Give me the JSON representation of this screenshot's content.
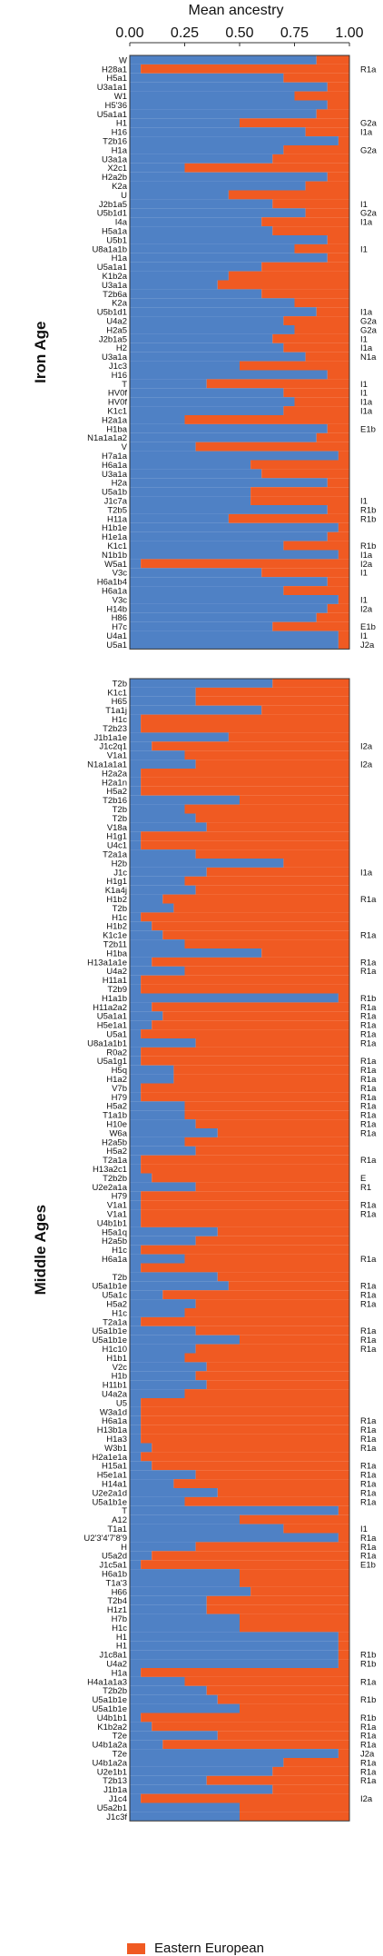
{
  "colors": {
    "eastern": "#f05a22",
    "western": "#4f81c5"
  },
  "chart_data": {
    "type": "bar",
    "orientation": "horizontal",
    "stacked": true,
    "title": "",
    "xlabel": "Mean ancestry",
    "xlim": [
      0,
      1
    ],
    "xticks": [
      "0.00",
      "0.25",
      "0.50",
      "0.75",
      "1.00"
    ],
    "grid": false,
    "legend": {
      "placement": "bottom",
      "entries": [
        "Eastern European"
      ]
    },
    "panels": [
      {
        "label": "Iron Age",
        "bars": [
          {
            "h": "W",
            "y": "",
            "e": 0.15
          },
          {
            "h": "H28a1",
            "y": "R1a",
            "e": 0.95
          },
          {
            "h": "H5a1",
            "y": "",
            "e": 0.3
          },
          {
            "h": "U3a1a1",
            "y": "",
            "e": 0.1
          },
          {
            "h": "W1",
            "y": "",
            "e": 0.25
          },
          {
            "h": "H5'36",
            "y": "",
            "e": 0.1
          },
          {
            "h": "U5a1a1",
            "y": "",
            "e": 0.15
          },
          {
            "h": "H1",
            "y": "G2a",
            "e": 0.5
          },
          {
            "h": "H16",
            "y": "I1a",
            "e": 0.2
          },
          {
            "h": "T2b16",
            "y": "",
            "e": 0.05
          },
          {
            "h": "H1a",
            "y": "G2a",
            "e": 0.3
          },
          {
            "h": "U3a1a",
            "y": "",
            "e": 0.35
          },
          {
            "h": "X2c1",
            "y": "",
            "e": 0.75
          },
          {
            "h": "H2a2b",
            "y": "",
            "e": 0.1
          },
          {
            "h": "K2a",
            "y": "",
            "e": 0.2
          },
          {
            "h": "U",
            "y": "",
            "e": 0.55
          },
          {
            "h": "J2b1a5",
            "y": "I1",
            "e": 0.35
          },
          {
            "h": "U5b1d1",
            "y": "G2a",
            "e": 0.2
          },
          {
            "h": "I4a",
            "y": "I1a",
            "e": 0.4
          },
          {
            "h": "H5a1a",
            "y": "",
            "e": 0.35
          },
          {
            "h": "U5b1",
            "y": "",
            "e": 0.1
          },
          {
            "h": "U8a1a1b",
            "y": "I1",
            "e": 0.25
          },
          {
            "h": "H1a",
            "y": "",
            "e": 0.1
          },
          {
            "h": "U5a1a1",
            "y": "",
            "e": 0.4
          },
          {
            "h": "K1b2a",
            "y": "",
            "e": 0.55
          },
          {
            "h": "U3a1a",
            "y": "",
            "e": 0.6
          },
          {
            "h": "T2b6a",
            "y": "",
            "e": 0.4
          },
          {
            "h": "K2a",
            "y": "",
            "e": 0.25
          },
          {
            "h": "U5b1d1",
            "y": "I1a",
            "e": 0.15
          },
          {
            "h": "U4a2",
            "y": "G2a",
            "e": 0.3
          },
          {
            "h": "H2a5",
            "y": "G2a",
            "e": 0.25
          },
          {
            "h": "J2b1a5",
            "y": "I1",
            "e": 0.35
          },
          {
            "h": "H2",
            "y": "I1a",
            "e": 0.3
          },
          {
            "h": "U3a1a",
            "y": "N1a",
            "e": 0.2
          },
          {
            "h": "J1c3",
            "y": "",
            "e": 0.5
          },
          {
            "h": "H16",
            "y": "",
            "e": 0.1
          },
          {
            "h": "T",
            "y": "I1",
            "e": 0.65
          },
          {
            "h": "HV0f",
            "y": "I1",
            "e": 0.3
          },
          {
            "h": "HV0f",
            "y": "I1a",
            "e": 0.25
          },
          {
            "h": "K1c1",
            "y": "I1a",
            "e": 0.3
          },
          {
            "h": "H2a1a",
            "y": "",
            "e": 0.75
          },
          {
            "h": "H1ba",
            "y": "E1b",
            "e": 0.1
          },
          {
            "h": "N1a1a1a2",
            "y": "",
            "e": 0.15
          },
          {
            "h": "V",
            "y": "",
            "e": 0.7
          },
          {
            "h": "H7a1a",
            "y": "",
            "e": 0.05
          },
          {
            "h": "H6a1a",
            "y": "",
            "e": 0.45
          },
          {
            "h": "U3a1a",
            "y": "",
            "e": 0.4
          },
          {
            "h": "H2a",
            "y": "",
            "e": 0.1
          },
          {
            "h": "U5a1b",
            "y": "",
            "e": 0.45
          },
          {
            "h": "J1c7a",
            "y": "I1",
            "e": 0.45
          },
          {
            "h": "T2b5",
            "y": "R1b",
            "e": 0.1
          },
          {
            "h": "H11a",
            "y": "R1b",
            "e": 0.55
          },
          {
            "h": "H1b1e",
            "y": "",
            "e": 0.05
          },
          {
            "h": "H1e1a",
            "y": "",
            "e": 0.1
          },
          {
            "h": "K1c1",
            "y": "R1b",
            "e": 0.3
          },
          {
            "h": "N1b1b",
            "y": "I1a",
            "e": 0.05
          },
          {
            "h": "W5a1",
            "y": "I2a",
            "e": 0.95
          },
          {
            "h": "V3c",
            "y": "I1",
            "e": 0.4
          },
          {
            "h": "H6a1b4",
            "y": "",
            "e": 0.1
          },
          {
            "h": "H6a1a",
            "y": "",
            "e": 0.3
          },
          {
            "h": "V3c",
            "y": "I1",
            "e": 0.05
          },
          {
            "h": "H14b",
            "y": "I2a",
            "e": 0.1
          },
          {
            "h": "H86",
            "y": "",
            "e": 0.15
          },
          {
            "h": "H7c",
            "y": "E1b",
            "e": 0.35
          },
          {
            "h": "U4a1",
            "y": "I1",
            "e": 0.05
          },
          {
            "h": "U5a1",
            "y": "J2a",
            "e": 0.05
          }
        ]
      },
      {
        "label": "Middle Ages",
        "bars": [
          {
            "h": "T2b",
            "y": "",
            "e": 0.35
          },
          {
            "h": "K1c1",
            "y": "",
            "e": 0.7
          },
          {
            "h": "H65",
            "y": "",
            "e": 0.7
          },
          {
            "h": "T1a1j",
            "y": "",
            "e": 0.4
          },
          {
            "h": "H1c",
            "y": "",
            "e": 0.95
          },
          {
            "h": "T2b23",
            "y": "",
            "e": 0.95
          },
          {
            "h": "J1b1a1e",
            "y": "",
            "e": 0.55
          },
          {
            "h": "J1c2q1",
            "y": "I2a",
            "e": 0.9
          },
          {
            "h": "V1a1",
            "y": "",
            "e": 0.75
          },
          {
            "h": "N1a1a1a1",
            "y": "I2a",
            "e": 0.7
          },
          {
            "h": "H2a2a",
            "y": "",
            "e": 0.95
          },
          {
            "h": "H2a1n",
            "y": "",
            "e": 0.95
          },
          {
            "h": "H5a2",
            "y": "",
            "e": 0.95
          },
          {
            "h": "T2b16",
            "y": "",
            "e": 0.5
          },
          {
            "h": "T2b",
            "y": "",
            "e": 0.75
          },
          {
            "h": "T2b",
            "y": "",
            "e": 0.7
          },
          {
            "h": "V18a",
            "y": "",
            "e": 0.65
          },
          {
            "h": "H1g1",
            "y": "",
            "e": 0.95
          },
          {
            "h": "U4c1",
            "y": "",
            "e": 0.95
          },
          {
            "h": "T2a1a",
            "y": "",
            "e": 0.7
          },
          {
            "h": "H2b",
            "y": "",
            "e": 0.3
          },
          {
            "h": "J1c",
            "y": "I1a",
            "e": 0.65
          },
          {
            "h": "H1g1",
            "y": "",
            "e": 0.75
          },
          {
            "h": "K1a4j",
            "y": "",
            "e": 0.7
          },
          {
            "h": "H1b2",
            "y": "R1a",
            "e": 0.85
          },
          {
            "h": "T2b",
            "y": "",
            "e": 0.8
          },
          {
            "h": "H1c",
            "y": "",
            "e": 0.95
          },
          {
            "h": "H1b2",
            "y": "",
            "e": 0.9
          },
          {
            "h": "K1c1e",
            "y": "R1a",
            "e": 0.85
          },
          {
            "h": "T2b11",
            "y": "",
            "e": 0.75
          },
          {
            "h": "H1ba",
            "y": "",
            "e": 0.4
          },
          {
            "h": "H13a1a1e",
            "y": "R1a",
            "e": 0.9
          },
          {
            "h": "U4a2",
            "y": "R1a",
            "e": 0.75
          },
          {
            "h": "H11a1",
            "y": "",
            "e": 0.95
          },
          {
            "h": "T2b9",
            "y": "",
            "e": 0.95
          },
          {
            "h": "H1a1b",
            "y": "R1b",
            "e": 0.05
          },
          {
            "h": "H11a2a2",
            "y": "R1a",
            "e": 0.9
          },
          {
            "h": "U5a1a1",
            "y": "R1a",
            "e": 0.85
          },
          {
            "h": "H5e1a1",
            "y": "R1a",
            "e": 0.9
          },
          {
            "h": "U5a1",
            "y": "R1a",
            "e": 0.95
          },
          {
            "h": "U8a1a1b1",
            "y": "R1a",
            "e": 0.7
          },
          {
            "h": "R0a2",
            "y": "",
            "e": 0.95
          },
          {
            "h": "U5a1g1",
            "y": "R1a",
            "e": 0.95
          },
          {
            "h": "H5q",
            "y": "R1a",
            "e": 0.8
          },
          {
            "h": "H1a2",
            "y": "R1a",
            "e": 0.8
          },
          {
            "h": "V7b",
            "y": "R1a",
            "e": 0.95
          },
          {
            "h": "H79",
            "y": "R1a",
            "e": 0.95
          },
          {
            "h": "H5a2",
            "y": "R1a",
            "e": 0.75
          },
          {
            "h": "T1a1b",
            "y": "R1a",
            "e": 0.75
          },
          {
            "h": "H10e",
            "y": "R1a",
            "e": 0.7
          },
          {
            "h": "W6a",
            "y": "R1a",
            "e": 0.6
          },
          {
            "h": "H2a5b",
            "y": "",
            "e": 0.75
          },
          {
            "h": "H5a2",
            "y": "",
            "e": 0.7
          },
          {
            "h": "T2a1a",
            "y": "R1a",
            "e": 0.95
          },
          {
            "h": "H13a2c1",
            "y": "",
            "e": 0.95
          },
          {
            "h": "T2b2b",
            "y": "E",
            "e": 0.9
          },
          {
            "h": "U2e2a1a",
            "y": "R1",
            "e": 0.7
          },
          {
            "h": "H79",
            "y": "",
            "e": 0.95
          },
          {
            "h": "V1a1",
            "y": "R1a",
            "e": 0.95
          },
          {
            "h": "V1a1",
            "y": "R1a",
            "e": 0.95
          },
          {
            "h": "U4b1b1",
            "y": "",
            "e": 0.95
          },
          {
            "h": "H5a1q",
            "y": "",
            "e": 0.6
          },
          {
            "h": "H2a5b",
            "y": "",
            "e": 0.7
          },
          {
            "h": "H1c",
            "y": "",
            "e": 0.95
          },
          {
            "h": "H6a1a",
            "y": "R1a",
            "e": 0.75
          },
          {
            "h": "",
            "y": "",
            "e": 0.95
          },
          {
            "h": "T2b",
            "y": "",
            "e": 0.6
          },
          {
            "h": "U5a1b1e",
            "y": "R1a",
            "e": 0.55
          },
          {
            "h": "U5a1c",
            "y": "R1a",
            "e": 0.85
          },
          {
            "h": "H5a2",
            "y": "R1a",
            "e": 0.7
          },
          {
            "h": "H1c",
            "y": "",
            "e": 0.75
          },
          {
            "h": "T2a1a",
            "y": "",
            "e": 0.95
          },
          {
            "h": "U5a1b1e",
            "y": "R1a",
            "e": 0.7
          },
          {
            "h": "U5a1b1e",
            "y": "R1a",
            "e": 0.5
          },
          {
            "h": "H1c10",
            "y": "R1a",
            "e": 0.7
          },
          {
            "h": "H1b1",
            "y": "",
            "e": 0.75
          },
          {
            "h": "V2c",
            "y": "",
            "e": 0.65
          },
          {
            "h": "H1b",
            "y": "",
            "e": 0.7
          },
          {
            "h": "H11b1",
            "y": "",
            "e": 0.65
          },
          {
            "h": "U4a2a",
            "y": "",
            "e": 0.75
          },
          {
            "h": "U5",
            "y": "",
            "e": 0.95
          },
          {
            "h": "W3a1d",
            "y": "",
            "e": 0.95
          },
          {
            "h": "H6a1a",
            "y": "R1a",
            "e": 0.95
          },
          {
            "h": "H13b1a",
            "y": "R1a",
            "e": 0.95
          },
          {
            "h": "H1a3",
            "y": "R1a",
            "e": 0.95
          },
          {
            "h": "W3b1",
            "y": "R1a",
            "e": 0.9
          },
          {
            "h": "H2a1e1a",
            "y": "",
            "e": 0.95
          },
          {
            "h": "H15a1",
            "y": "R1a",
            "e": 0.9
          },
          {
            "h": "H5e1a1",
            "y": "R1a",
            "e": 0.7
          },
          {
            "h": "H14a1",
            "y": "R1a",
            "e": 0.8
          },
          {
            "h": "U2e2a1d",
            "y": "R1a",
            "e": 0.6
          },
          {
            "h": "U5a1b1e",
            "y": "R1a",
            "e": 0.75
          },
          {
            "h": "T",
            "y": "",
            "e": 0.05
          },
          {
            "h": "A12",
            "y": "",
            "e": 0.5
          },
          {
            "h": "T1a1",
            "y": "I1",
            "e": 0.3
          },
          {
            "h": "U2'3'4'7'8'9",
            "y": "R1a",
            "e": 0.05
          },
          {
            "h": "H",
            "y": "R1a",
            "e": 0.7
          },
          {
            "h": "U5a2d",
            "y": "R1a",
            "e": 0.9
          },
          {
            "h": "J1c5a1",
            "y": "E1b",
            "e": 0.95
          },
          {
            "h": "H6a1b",
            "y": "",
            "e": 0.5
          },
          {
            "h": "T1a'3",
            "y": "",
            "e": 0.5
          },
          {
            "h": "H66",
            "y": "",
            "e": 0.45
          },
          {
            "h": "T2b4",
            "y": "",
            "e": 0.65
          },
          {
            "h": "H1z1",
            "y": "",
            "e": 0.65
          },
          {
            "h": "H7b",
            "y": "",
            "e": 0.5
          },
          {
            "h": "H1c",
            "y": "",
            "e": 0.5
          },
          {
            "h": "H1",
            "y": "",
            "e": 0.05
          },
          {
            "h": "H1",
            "y": "",
            "e": 0.05
          },
          {
            "h": "J1c8a1",
            "y": "R1b",
            "e": 0.05
          },
          {
            "h": "U4a2",
            "y": "R1b",
            "e": 0.05
          },
          {
            "h": "H1a",
            "y": "",
            "e": 0.95
          },
          {
            "h": "H4a1a1a3",
            "y": "R1a",
            "e": 0.75
          },
          {
            "h": "T2b2b",
            "y": "",
            "e": 0.65
          },
          {
            "h": "U5a1b1e",
            "y": "R1b",
            "e": 0.6
          },
          {
            "h": "U5a1b1e",
            "y": "",
            "e": 0.5
          },
          {
            "h": "U4b1b1",
            "y": "R1b",
            "e": 0.95
          },
          {
            "h": "K1b2a2",
            "y": "R1a",
            "e": 0.9
          },
          {
            "h": "T2e",
            "y": "R1a",
            "e": 0.6
          },
          {
            "h": "U4b1a2a",
            "y": "R1a",
            "e": 0.85
          },
          {
            "h": "T2e",
            "y": "J2a",
            "e": 0.05
          },
          {
            "h": "U4b1a2a",
            "y": "R1a",
            "e": 0.3
          },
          {
            "h": "U2e1b1",
            "y": "R1a",
            "e": 0.35
          },
          {
            "h": "T2b13",
            "y": "R1a",
            "e": 0.65
          },
          {
            "h": "J1b1a",
            "y": "",
            "e": 0.35
          },
          {
            "h": "J1c4",
            "y": "I2a",
            "e": 0.95
          },
          {
            "h": "U5a2b1",
            "y": "",
            "e": 0.5
          },
          {
            "h": "J1c3f",
            "y": "",
            "e": 0.5
          }
        ]
      }
    ]
  }
}
